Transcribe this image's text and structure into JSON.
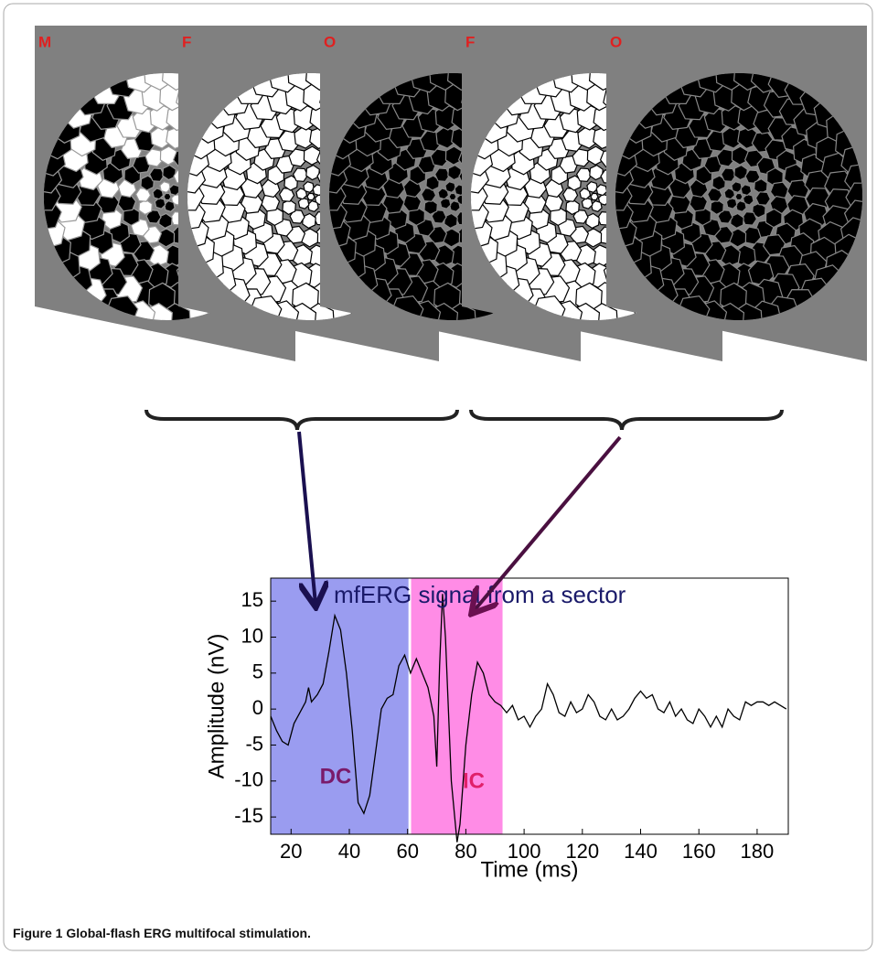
{
  "frames": [
    {
      "label": "M"
    },
    {
      "label": "F"
    },
    {
      "label": "O"
    },
    {
      "label": "F"
    },
    {
      "label": "O"
    }
  ],
  "chart_data": {
    "type": "line",
    "title": "mfERG signal from a sector",
    "xlabel": "Time (ms)",
    "ylabel": "Amplitude (nV)",
    "x": [
      13,
      15,
      17,
      19,
      21,
      23,
      25,
      26,
      27,
      29,
      31,
      33,
      35,
      37,
      39,
      41,
      43,
      45,
      47,
      49,
      51,
      53,
      55,
      57,
      59,
      61,
      63,
      65,
      67,
      69,
      70,
      71,
      72,
      73,
      75,
      77,
      78,
      80,
      82,
      84,
      86,
      88,
      90,
      92,
      94,
      96,
      98,
      100,
      102,
      104,
      106,
      108,
      110,
      112,
      114,
      116,
      118,
      120,
      122,
      124,
      126,
      128,
      130,
      132,
      134,
      136,
      138,
      140,
      142,
      144,
      146,
      148,
      150,
      152,
      154,
      156,
      158,
      160,
      162,
      164,
      166,
      168,
      170,
      172,
      174,
      176,
      178,
      180,
      182,
      184,
      186,
      188,
      190
    ],
    "values": [
      -1,
      -3,
      -4.5,
      -5,
      -2,
      -0.5,
      1,
      3,
      1,
      2,
      3.5,
      8,
      13,
      11,
      5,
      -3,
      -13,
      -14.5,
      -12,
      -6,
      0,
      1.5,
      2,
      6,
      7.5,
      5,
      7,
      5,
      3,
      -1,
      -8,
      6,
      16,
      10,
      -10,
      -18.5,
      -16,
      -5,
      2,
      6.5,
      5,
      2,
      1,
      0.5,
      -0.5,
      0.5,
      -1.5,
      -1,
      -2.5,
      -1,
      0,
      3.5,
      2,
      -0.5,
      -1,
      1,
      -0.5,
      0,
      2,
      1,
      -1,
      -1.5,
      0,
      -1.5,
      -1,
      0,
      1.5,
      2.5,
      1.5,
      2,
      0,
      -0.5,
      1,
      -1,
      0,
      -1.5,
      -2,
      0,
      -1,
      -2.5,
      -1,
      -2.5,
      0,
      -1,
      -1.5,
      1,
      0.5,
      1,
      1,
      0.5,
      1,
      0.5,
      0
    ],
    "color": "#000000",
    "xlim": [
      13,
      190.7
    ],
    "ylim": [
      -17.4,
      18.2
    ],
    "xticks": [
      20,
      40,
      60,
      80,
      100,
      120,
      140,
      160,
      180
    ],
    "yticks": [
      -15,
      -10,
      -5,
      0,
      5,
      10,
      15
    ],
    "regions": [
      {
        "label": "DC",
        "start": 13,
        "end": 60.3,
        "color": "#9a9cf0",
        "label_color": "#7a1a6a"
      },
      {
        "label": "IC",
        "start": 61.2,
        "end": 92.6,
        "color": "#ff8ce6",
        "label_color": "#e0206a"
      }
    ]
  },
  "caption": {
    "label": "Figure 1",
    "text": "Global-flash ERG multifocal stimulation."
  }
}
